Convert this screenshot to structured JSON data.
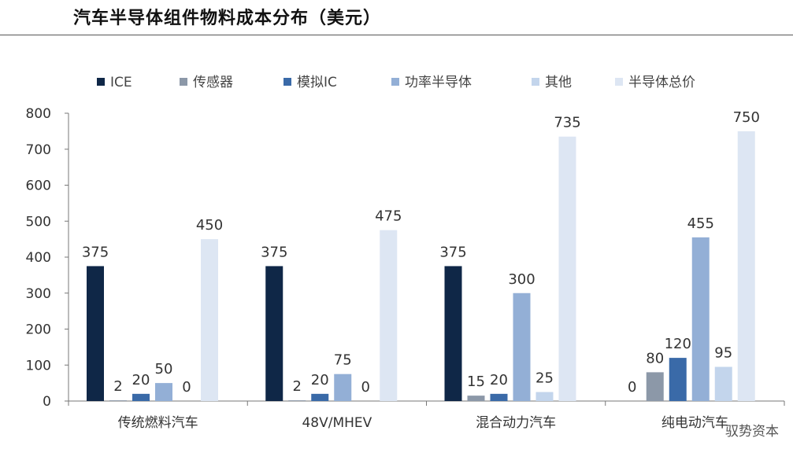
{
  "title": "汽车半导体组件物料成本分布（美元）",
  "watermark": "驭势资本",
  "chart_data": {
    "type": "bar",
    "title": "汽车半导体组件物料成本分布（美元）",
    "categories": [
      "传统燃料汽车",
      "48V/MHEV",
      "混合动力汽车",
      "纯电动汽车"
    ],
    "series": [
      {
        "name": "ICE",
        "color": "#0f2747",
        "values": [
          375,
          375,
          375,
          0
        ]
      },
      {
        "name": "传感器",
        "color": "#8c98a8",
        "values": [
          2,
          2,
          15,
          80
        ]
      },
      {
        "name": "模拟IC",
        "color": "#3a6aa8",
        "values": [
          20,
          20,
          20,
          120
        ]
      },
      {
        "name": "功率半导体",
        "color": "#93afd6",
        "values": [
          50,
          75,
          300,
          455
        ]
      },
      {
        "name": "其他",
        "color": "#c3d5ec",
        "values": [
          0,
          0,
          25,
          95
        ]
      },
      {
        "name": "半导体总价",
        "color": "#dde6f3",
        "values": [
          450,
          475,
          735,
          750
        ]
      }
    ],
    "ylim": [
      0,
      800
    ],
    "yticks": [
      0,
      100,
      200,
      300,
      400,
      500,
      600,
      700,
      800
    ],
    "legend": "top",
    "grid": false,
    "xlabel": "",
    "ylabel": ""
  }
}
